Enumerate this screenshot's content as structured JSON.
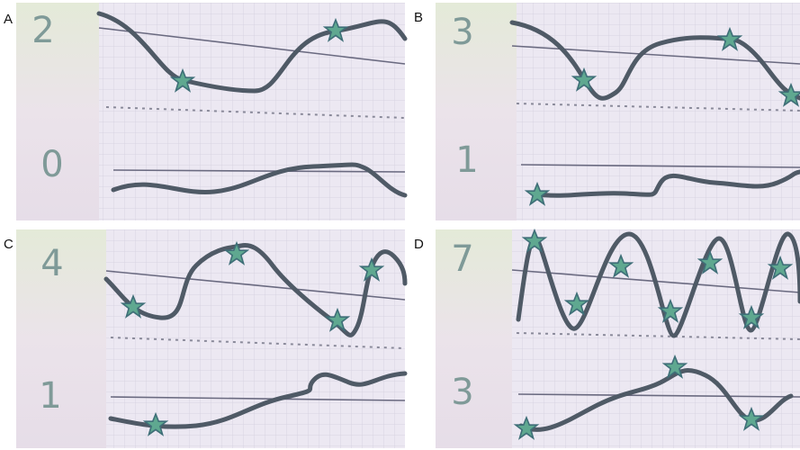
{
  "panels": [
    {
      "label": "A",
      "top_number": 2,
      "bottom_number": 0
    },
    {
      "label": "B",
      "top_number": 3,
      "bottom_number": 1
    },
    {
      "label": "C",
      "top_number": 4,
      "bottom_number": 1
    },
    {
      "label": "D",
      "top_number": 7,
      "bottom_number": 3
    }
  ]
}
